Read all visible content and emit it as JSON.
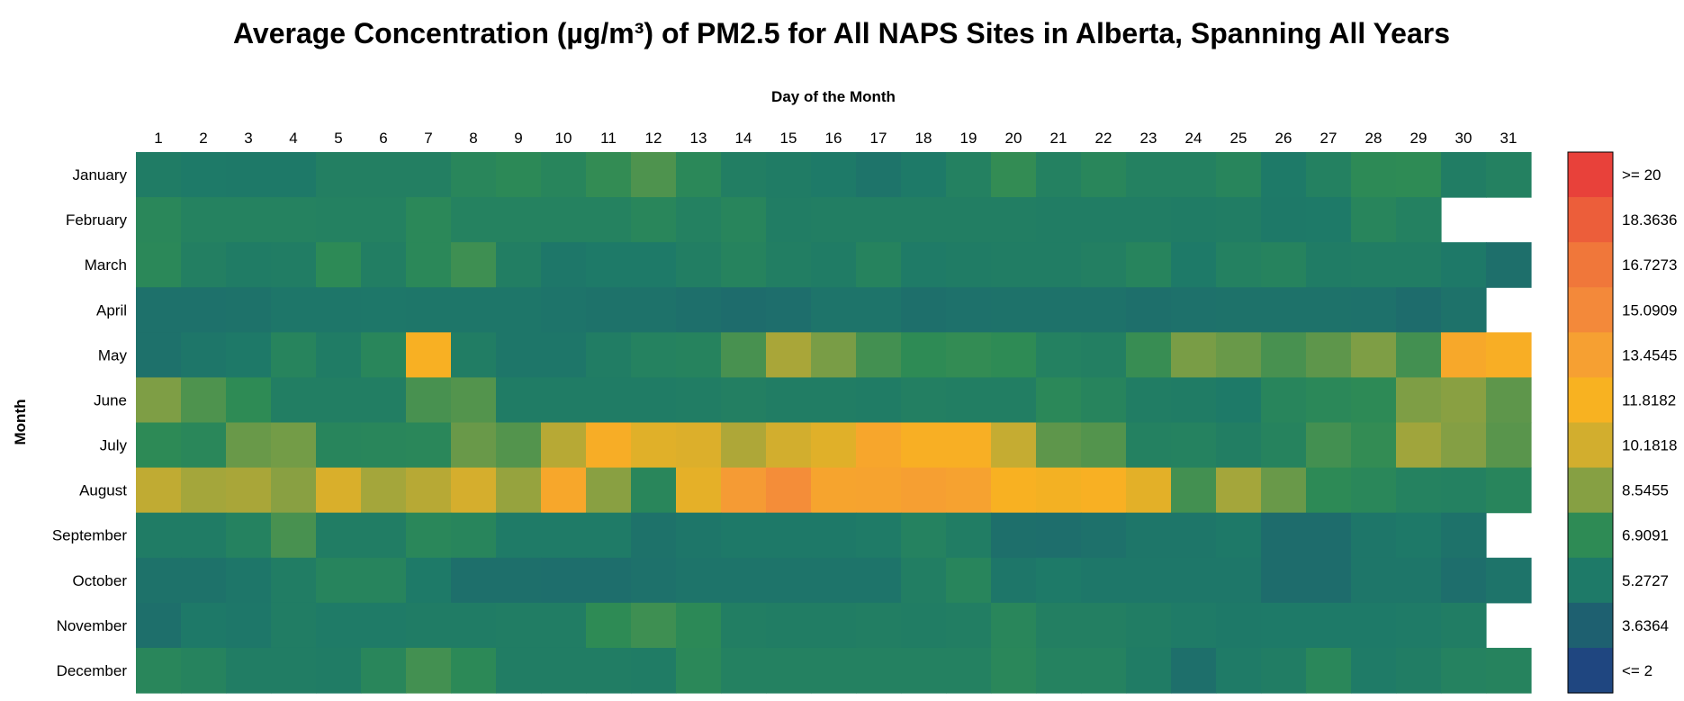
{
  "chart_data": {
    "type": "heatmap",
    "title": "Average Concentration (µg/m³) of PM2.5 for All NAPS Sites in Alberta, Spanning All Years",
    "xlabel": "Day of the Month",
    "ylabel": "Month",
    "x_labels": [
      "1",
      "2",
      "3",
      "4",
      "5",
      "6",
      "7",
      "8",
      "9",
      "10",
      "11",
      "12",
      "13",
      "14",
      "15",
      "16",
      "17",
      "18",
      "19",
      "20",
      "21",
      "22",
      "23",
      "24",
      "25",
      "26",
      "27",
      "28",
      "29",
      "30",
      "31"
    ],
    "y_labels": [
      "January",
      "February",
      "March",
      "April",
      "May",
      "June",
      "July",
      "August",
      "September",
      "October",
      "November",
      "December"
    ],
    "values": [
      [
        5.5,
        5.3,
        5.2,
        5.2,
        5.8,
        5.8,
        5.8,
        6.4,
        6.7,
        6.3,
        7.0,
        7.5,
        6.6,
        5.7,
        5.5,
        5.3,
        4.9,
        5.3,
        5.9,
        7.0,
        5.9,
        6.4,
        5.9,
        5.9,
        6.3,
        5.3,
        5.9,
        6.8,
        6.9,
        5.6,
        5.9
      ],
      [
        6.5,
        6.0,
        6.0,
        6.0,
        5.9,
        5.9,
        6.6,
        6.0,
        6.0,
        6.0,
        6.0,
        6.4,
        5.9,
        6.3,
        5.6,
        5.7,
        5.7,
        5.7,
        5.7,
        5.7,
        5.6,
        5.6,
        5.6,
        5.5,
        5.6,
        5.2,
        5.3,
        6.3,
        5.9,
        null,
        null
      ],
      [
        6.6,
        5.8,
        5.5,
        5.6,
        6.8,
        5.7,
        6.6,
        7.2,
        5.7,
        5.1,
        5.3,
        5.3,
        5.7,
        6.1,
        5.7,
        5.5,
        6.1,
        5.4,
        5.5,
        5.6,
        5.6,
        5.8,
        6.2,
        5.3,
        5.9,
        6.1,
        5.5,
        5.6,
        5.6,
        5.2,
        4.6
      ],
      [
        4.7,
        4.7,
        4.8,
        5.0,
        5.0,
        5.1,
        5.0,
        5.0,
        5.0,
        4.9,
        4.8,
        4.8,
        4.6,
        4.4,
        4.5,
        4.9,
        4.9,
        4.6,
        4.7,
        4.8,
        4.8,
        4.8,
        4.6,
        4.7,
        4.8,
        4.8,
        4.8,
        4.7,
        4.4,
        4.8,
        null
      ],
      [
        4.7,
        5.0,
        5.2,
        6.2,
        5.5,
        6.4,
        12.0,
        5.6,
        5.0,
        5.0,
        5.6,
        6.0,
        6.1,
        7.4,
        9.3,
        8.3,
        7.3,
        6.9,
        7.0,
        6.9,
        5.9,
        5.8,
        7.1,
        8.3,
        8.0,
        7.4,
        7.8,
        8.4,
        7.3,
        12.7,
        12.2
      ],
      [
        8.4,
        7.5,
        6.9,
        5.7,
        5.7,
        5.7,
        7.4,
        7.6,
        5.5,
        5.5,
        5.5,
        5.5,
        5.6,
        5.8,
        5.6,
        5.6,
        5.5,
        5.8,
        5.7,
        5.7,
        6.6,
        6.2,
        5.6,
        5.5,
        5.3,
        6.3,
        6.6,
        6.8,
        8.4,
        8.6,
        7.8
      ],
      [
        6.8,
        6.5,
        8.0,
        8.2,
        6.3,
        6.4,
        6.5,
        8.0,
        7.6,
        9.6,
        12.3,
        10.8,
        10.6,
        9.4,
        10.2,
        10.8,
        12.9,
        12.1,
        12.1,
        9.9,
        7.8,
        7.6,
        5.9,
        6.0,
        5.7,
        6.1,
        7.3,
        7.0,
        9.1,
        8.5,
        7.7
      ],
      [
        9.8,
        9.2,
        9.3,
        8.6,
        10.5,
        9.2,
        9.6,
        10.3,
        8.9,
        12.8,
        8.6,
        6.4,
        11.0,
        13.8,
        14.8,
        13.1,
        13.2,
        13.5,
        13.3,
        11.9,
        11.6,
        12.0,
        10.9,
        7.3,
        9.2,
        8.0,
        6.8,
        6.5,
        6.0,
        5.9,
        6.3
      ],
      [
        5.5,
        5.5,
        6.0,
        7.4,
        5.6,
        5.6,
        6.5,
        6.3,
        5.4,
        5.4,
        5.4,
        4.8,
        5.0,
        5.2,
        5.2,
        5.2,
        5.4,
        6.0,
        5.6,
        4.6,
        4.5,
        4.7,
        5.0,
        5.0,
        5.2,
        4.4,
        4.4,
        5.0,
        5.2,
        4.8,
        null
      ],
      [
        4.8,
        4.8,
        5.0,
        5.6,
        6.2,
        6.2,
        5.3,
        4.6,
        4.6,
        4.5,
        4.5,
        4.7,
        4.9,
        4.9,
        4.9,
        4.9,
        4.9,
        5.7,
        6.3,
        5.0,
        5.3,
        5.1,
        5.1,
        5.1,
        5.1,
        4.4,
        4.4,
        5.0,
        5.0,
        4.5,
        4.9
      ],
      [
        4.6,
        5.2,
        5.1,
        5.6,
        5.4,
        5.4,
        5.5,
        5.5,
        5.6,
        5.6,
        6.9,
        7.2,
        6.7,
        5.7,
        5.6,
        5.6,
        5.7,
        5.6,
        5.7,
        6.4,
        5.8,
        5.8,
        5.6,
        5.4,
        5.2,
        5.3,
        5.3,
        5.3,
        5.4,
        5.6,
        null
      ],
      [
        6.4,
        6.1,
        5.6,
        5.6,
        5.5,
        6.4,
        7.3,
        6.7,
        5.6,
        5.6,
        5.6,
        5.5,
        6.6,
        5.9,
        5.9,
        5.9,
        5.9,
        5.9,
        5.9,
        6.5,
        6.0,
        6.0,
        5.5,
        4.6,
        5.4,
        5.6,
        6.5,
        5.4,
        5.6,
        6.0,
        6.1
      ]
    ],
    "colorbar": {
      "labels": [
        ">= 20",
        "18.3636",
        "16.7273",
        "15.0909",
        "13.4545",
        "11.8182",
        "10.1818",
        "8.5455",
        "6.9091",
        "5.2727",
        "3.6364",
        "<= 2"
      ],
      "colors": [
        "#e8413a",
        "#ec5e3a",
        "#f0773a",
        "#f3893a",
        "#f6a032",
        "#f8b221",
        "#d2ae2e",
        "#86a043",
        "#2e8b55",
        "#1e7a68",
        "#1e6070",
        "#1f4680"
      ],
      "range": [
        2,
        20
      ]
    },
    "legend_placement": "right",
    "grid": false
  }
}
